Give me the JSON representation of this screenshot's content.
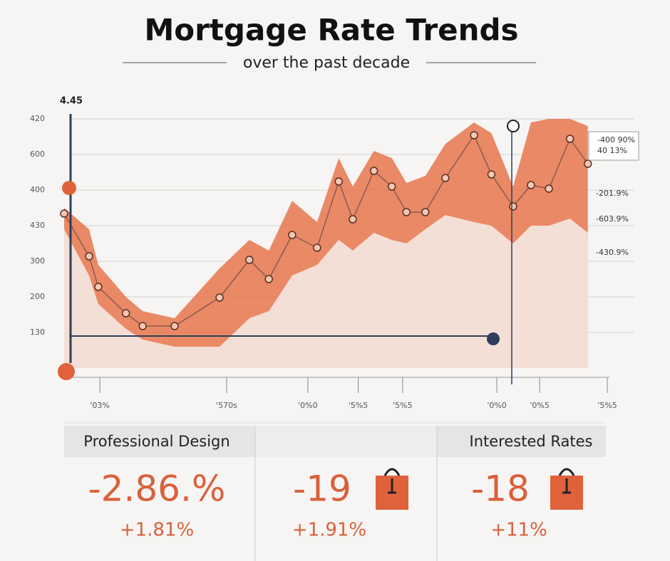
{
  "chart_data": {
    "type": "line",
    "title": "Mortgage Rate Trends",
    "subtitle": "over the past decade",
    "y_top_label": "4.45",
    "x": [
      0,
      0.46,
      0.63,
      1.14,
      1.45,
      2.04,
      2.87,
      3.42,
      3.78,
      4.21,
      4.67,
      5.07,
      5.33,
      5.72,
      6.05,
      6.32,
      6.67,
      7.04,
      7.57,
      7.89,
      8.29,
      8.62,
      8.95,
      9.34,
      9.67
    ],
    "series": [
      {
        "color": "#8a5a4a",
        "values": [
          4.34,
          3.14,
          2.28,
          1.54,
          1.18,
          1.18,
          1.98,
          3.04,
          2.5,
          3.74,
          3.38,
          5.24,
          4.18,
          5.54,
          5.1,
          4.38,
          4.38,
          5.34,
          6.54,
          5.44,
          4.54,
          5.14,
          5.04,
          6.44,
          5.74
        ]
      },
      {
        "color": "#e8754c",
        "values": [
          4.5,
          3.9,
          2.9,
          2.0,
          1.6,
          1.4,
          2.8,
          3.6,
          3.3,
          4.7,
          4.1,
          5.9,
          5.1,
          6.1,
          5.9,
          5.2,
          5.4,
          6.3,
          6.9,
          6.6,
          5.1,
          6.9,
          7.0,
          7.0,
          6.8
        ]
      },
      {
        "color": "#f6f5f3",
        "values": [
          3.9,
          2.6,
          1.8,
          1.1,
          0.8,
          0.6,
          0.6,
          1.4,
          1.6,
          2.6,
          2.9,
          3.6,
          3.3,
          3.8,
          3.6,
          3.5,
          3.9,
          4.3,
          4.1,
          4.0,
          3.5,
          4.0,
          4.0,
          4.2,
          3.8
        ]
      }
    ],
    "xlim": [
      0,
      10.2
    ],
    "ylim": [
      0,
      7.5
    ],
    "xticks": [
      {
        "value": 0.66,
        "label": "'03%"
      },
      {
        "value": 3.0,
        "label": "'570s"
      },
      {
        "value": 4.5,
        "label": "'0%0"
      },
      {
        "value": 5.43,
        "label": "'5%5"
      },
      {
        "value": 6.25,
        "label": "'5%5"
      },
      {
        "value": 7.99,
        "label": "'0%0"
      },
      {
        "value": 8.78,
        "label": "'0%5"
      },
      {
        "value": 10.03,
        "label": "'5%5"
      }
    ],
    "yticks": [
      {
        "value": 1,
        "label": "130"
      },
      {
        "value": 2,
        "label": "200"
      },
      {
        "value": 3,
        "label": "300"
      },
      {
        "value": 4,
        "label": "430"
      },
      {
        "value": 5,
        "label": "400"
      },
      {
        "value": 6,
        "label": "600"
      },
      {
        "value": 7,
        "label": "420"
      }
    ],
    "grid": true,
    "annotations": [
      "-400 90%",
      "40 13%",
      "-201.9%",
      "-603.9%",
      "-430.9%"
    ]
  },
  "cards": [
    {
      "header": "Professional Design",
      "value": "-2.86.%",
      "change": "+1.81%"
    },
    {
      "value": "-19",
      "change": "+1.91%"
    },
    {
      "header": "Interested Rates",
      "value": "-18",
      "change": "+11%"
    }
  ]
}
